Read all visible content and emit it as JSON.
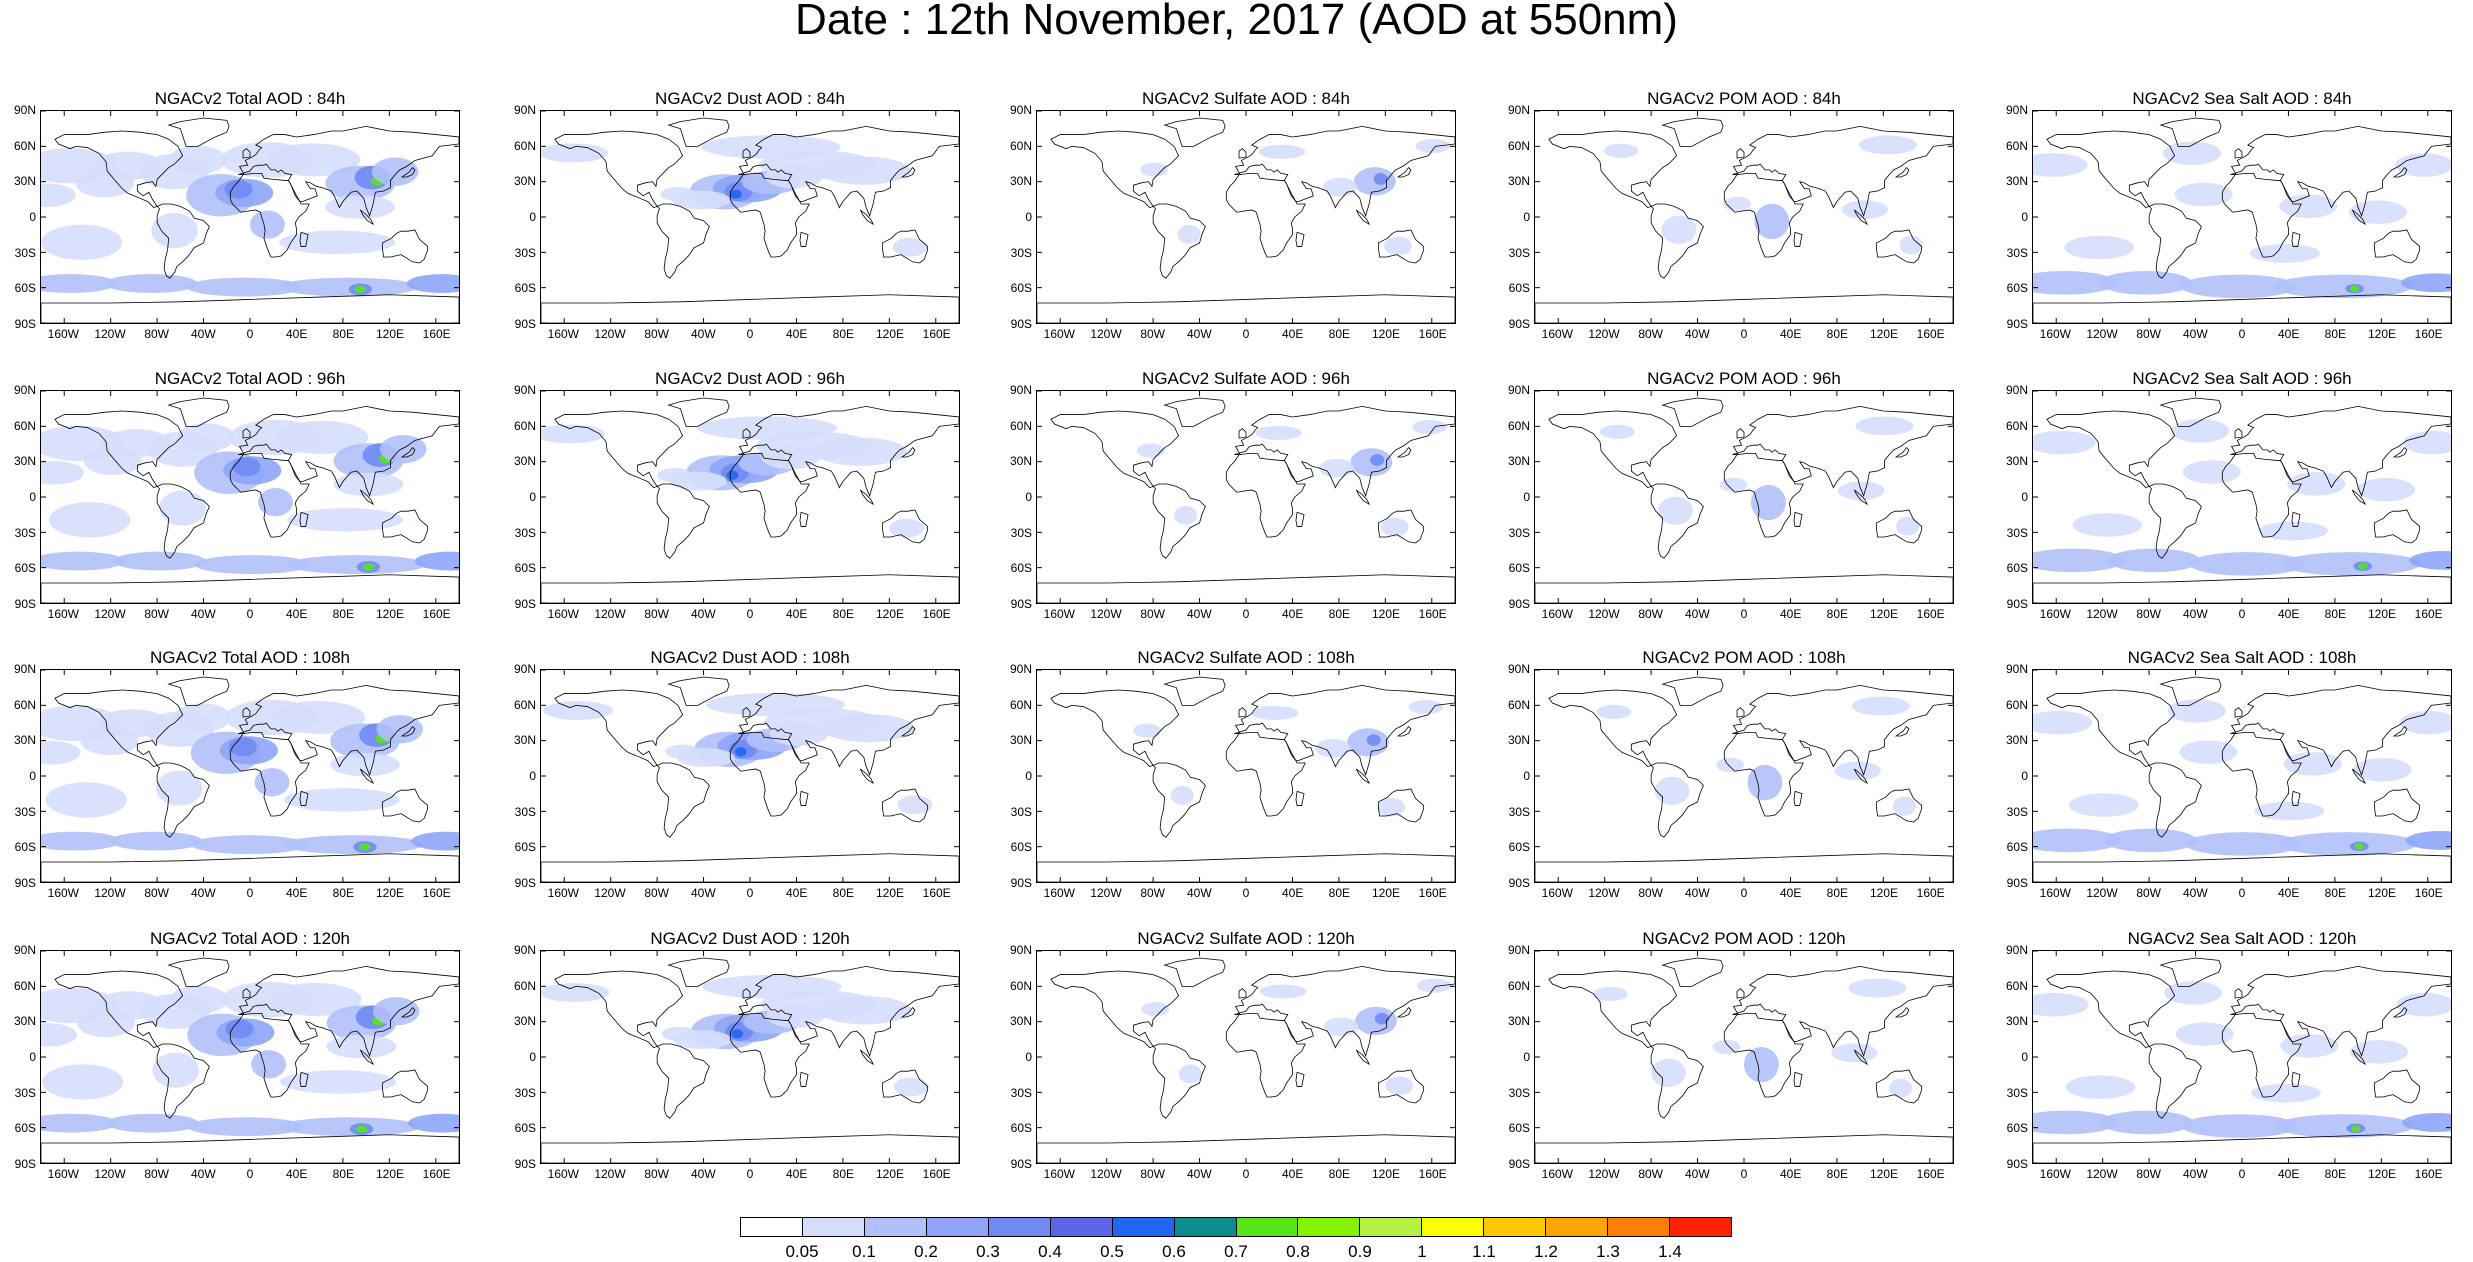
{
  "title": "Date : 12th November, 2017 (AOD at 550nm)",
  "panels": [
    {
      "title": "NGACv2 Total AOD : 84h",
      "variable": "total"
    },
    {
      "title": "NGACv2 Dust AOD : 84h",
      "variable": "dust"
    },
    {
      "title": "NGACv2 Sulfate AOD : 84h",
      "variable": "sulfate"
    },
    {
      "title": "NGACv2 POM AOD : 84h",
      "variable": "pom"
    },
    {
      "title": "NGACv2 Sea Salt AOD : 84h",
      "variable": "seasalt"
    },
    {
      "title": "NGACv2 Total AOD : 96h",
      "variable": "total"
    },
    {
      "title": "NGACv2 Dust AOD : 96h",
      "variable": "dust"
    },
    {
      "title": "NGACv2 Sulfate AOD : 96h",
      "variable": "sulfate"
    },
    {
      "title": "NGACv2 POM AOD : 96h",
      "variable": "pom"
    },
    {
      "title": "NGACv2 Sea Salt AOD : 96h",
      "variable": "seasalt"
    },
    {
      "title": "NGACv2 Total AOD : 108h",
      "variable": "total"
    },
    {
      "title": "NGACv2 Dust AOD : 108h",
      "variable": "dust"
    },
    {
      "title": "NGACv2 Sulfate AOD : 108h",
      "variable": "sulfate"
    },
    {
      "title": "NGACv2 POM AOD : 108h",
      "variable": "pom"
    },
    {
      "title": "NGACv2 Sea Salt AOD : 108h",
      "variable": "seasalt"
    },
    {
      "title": "NGACv2 Total AOD : 120h",
      "variable": "total"
    },
    {
      "title": "NGACv2 Dust AOD : 120h",
      "variable": "dust"
    },
    {
      "title": "NGACv2 Sulfate AOD : 120h",
      "variable": "sulfate"
    },
    {
      "title": "NGACv2 POM AOD : 120h",
      "variable": "pom"
    },
    {
      "title": "NGACv2 Sea Salt  AOD : 120h",
      "variable": "seasalt"
    }
  ],
  "lat_ticks": [
    "90N",
    "60N",
    "30N",
    "0",
    "30S",
    "60S",
    "90S"
  ],
  "lon_ticks": [
    "160W",
    "120W",
    "80W",
    "40W",
    "0",
    "40E",
    "80E",
    "120E",
    "160E"
  ],
  "colorbar": {
    "colors": [
      "#ffffff",
      "#d6defc",
      "#b0c0fa",
      "#8ea5f7",
      "#7089f4",
      "#5a66e6",
      "#1f66f0",
      "#0c8c8c",
      "#55e61a",
      "#86f200",
      "#b6f044",
      "#ffff00",
      "#ffc800",
      "#ffa500",
      "#ff7f00",
      "#ff2200"
    ],
    "labels": [
      "0.05",
      "0.1",
      "0.2",
      "0.3",
      "0.4",
      "0.5",
      "0.6",
      "0.7",
      "0.8",
      "0.9",
      "1",
      "1.1",
      "1.2",
      "1.3",
      "1.4"
    ]
  }
}
